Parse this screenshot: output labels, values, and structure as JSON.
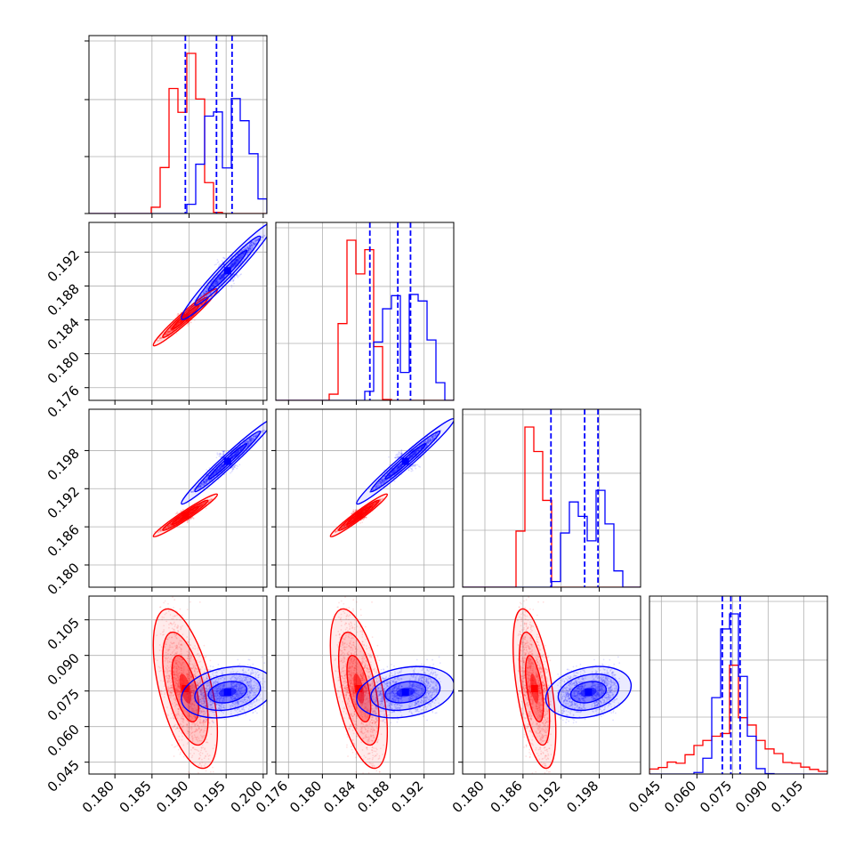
{
  "chart_data": {
    "type": "corner",
    "n_params": 4,
    "colors": {
      "series_a": "#ff0000",
      "series_b": "#0000ff"
    },
    "legend": "none",
    "grid": true,
    "quantile_line_style": "dashed",
    "quantile_line_color": "#0000ff",
    "params": [
      {
        "range": [
          0.1765,
          0.2005
        ],
        "ticks": [
          0.18,
          0.185,
          0.19,
          0.195,
          0.2
        ],
        "tick_labels": [
          "0.180",
          "0.185",
          "0.190",
          "0.195",
          "0.200"
        ],
        "dist_red": {
          "mean": 0.1895,
          "sd": 0.0018,
          "skew": -0.6
        },
        "dist_blue": {
          "mean": 0.1952,
          "sd": 0.0026,
          "skew": -0.8
        },
        "quantiles_blue": [
          0.1895,
          0.1937,
          0.1958
        ]
      },
      {
        "range": [
          0.1745,
          0.1955
        ],
        "ticks": [
          0.176,
          0.18,
          0.184,
          0.188,
          0.192
        ],
        "tick_labels": [
          "0.176",
          "0.180",
          "0.184",
          "0.188",
          "0.192"
        ],
        "dist_red": {
          "mean": 0.1843,
          "sd": 0.0014,
          "skew": -0.7
        },
        "dist_blue": {
          "mean": 0.1898,
          "sd": 0.0024,
          "skew": -0.9
        },
        "quantiles_blue": [
          0.1856,
          0.1889,
          0.1904
        ]
      },
      {
        "range": [
          0.1765,
          0.2045
        ],
        "ticks": [
          0.18,
          0.186,
          0.192,
          0.198
        ],
        "tick_labels": [
          "0.180",
          "0.186",
          "0.192",
          "0.198"
        ],
        "dist_red": {
          "mean": 0.1878,
          "sd": 0.0014,
          "skew": -0.8
        },
        "dist_blue": {
          "mean": 0.1963,
          "sd": 0.0028,
          "skew": -0.9
        },
        "quantiles_blue": [
          0.1904,
          0.1957,
          0.1978
        ]
      },
      {
        "range": [
          0.04,
          0.115
        ],
        "ticks": [
          0.045,
          0.06,
          0.075,
          0.09,
          0.105
        ],
        "tick_labels": [
          "0.045",
          "0.060",
          "0.075",
          "0.090",
          "0.105"
        ],
        "dist_red": {
          "mean": 0.076,
          "sd": 0.014,
          "skew": 0.8
        },
        "dist_blue": {
          "mean": 0.0745,
          "sd": 0.0045,
          "skew": 0.0
        },
        "quantiles_blue": [
          0.0707,
          0.0743,
          0.0782
        ]
      }
    ],
    "correlations_red": {
      "1-0": 0.97,
      "2-0": 0.97,
      "2-1": 0.97,
      "3-0": -0.55,
      "3-1": -0.55,
      "3-2": -0.55
    },
    "correlations_blue": {
      "1-0": 0.97,
      "2-0": 0.98,
      "2-1": 0.98,
      "3-0": 0.25,
      "3-1": 0.25,
      "3-2": 0.25
    }
  }
}
